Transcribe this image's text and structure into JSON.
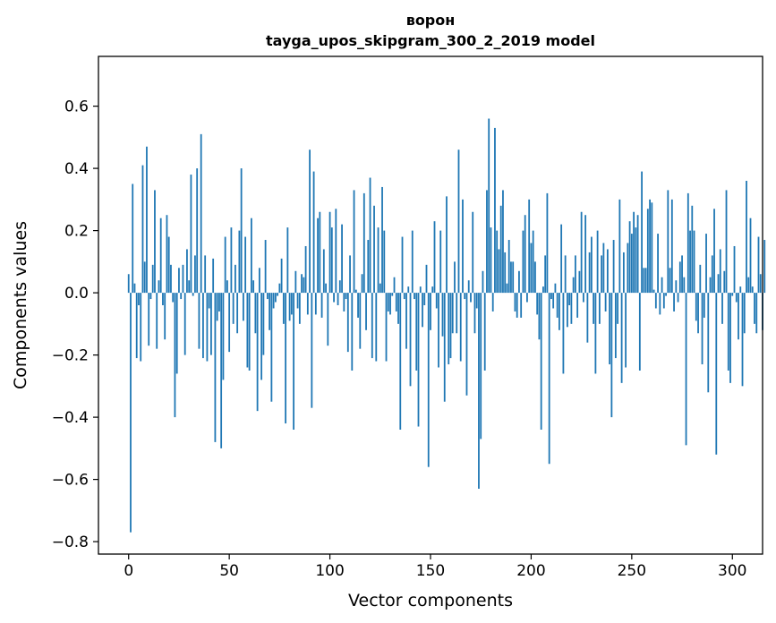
{
  "chart_data": {
    "type": "bar",
    "title": "ворон",
    "subtitle": "tayga_upos_skipgram_300_2_2019 model",
    "xlabel": "Vector components",
    "ylabel": "Components values",
    "xlim": [
      -15,
      315
    ],
    "ylim": [
      -0.84,
      0.76
    ],
    "xticks": [
      0,
      50,
      100,
      150,
      200,
      250,
      300
    ],
    "xtick_labels": [
      "0",
      "50",
      "100",
      "150",
      "200",
      "250",
      "300"
    ],
    "yticks": [
      -0.8,
      -0.6,
      -0.4,
      -0.2,
      0.0,
      0.2,
      0.4,
      0.6
    ],
    "ytick_labels": [
      "−0.8",
      "−0.6",
      "−0.4",
      "−0.2",
      "0.0",
      "0.2",
      "0.4",
      "0.6"
    ],
    "bar_color": "#1f77b4",
    "grid": false,
    "values": [
      0.06,
      -0.77,
      0.35,
      0.03,
      -0.21,
      -0.04,
      -0.22,
      0.41,
      0.1,
      0.47,
      -0.17,
      -0.02,
      0.09,
      0.33,
      -0.18,
      0.04,
      0.24,
      -0.04,
      -0.15,
      0.25,
      0.18,
      0.09,
      -0.03,
      -0.4,
      -0.26,
      0.08,
      -0.02,
      0.09,
      -0.2,
      0.14,
      0.04,
      0.38,
      -0.01,
      0.12,
      0.4,
      -0.18,
      0.51,
      -0.21,
      0.12,
      -0.22,
      -0.05,
      -0.2,
      0.11,
      -0.48,
      -0.09,
      -0.06,
      -0.5,
      -0.28,
      0.18,
      0.04,
      -0.19,
      0.21,
      -0.1,
      0.09,
      -0.13,
      0.2,
      0.4,
      -0.09,
      0.18,
      -0.24,
      -0.25,
      0.24,
      0.04,
      -0.13,
      -0.38,
      0.08,
      -0.28,
      -0.2,
      0.17,
      -0.02,
      -0.12,
      -0.35,
      -0.05,
      -0.03,
      -0.01,
      0.03,
      0.11,
      -0.1,
      -0.42,
      0.21,
      -0.09,
      -0.07,
      -0.44,
      0.07,
      -0.05,
      -0.1,
      0.06,
      0.05,
      0.15,
      -0.07,
      0.46,
      -0.37,
      0.39,
      -0.07,
      0.24,
      0.26,
      -0.08,
      0.14,
      0.03,
      -0.17,
      0.26,
      0.21,
      -0.03,
      0.27,
      -0.04,
      0.04,
      0.22,
      -0.06,
      -0.02,
      -0.19,
      0.12,
      -0.25,
      0.33,
      0.01,
      -0.08,
      -0.18,
      0.06,
      0.32,
      -0.12,
      0.17,
      0.37,
      -0.21,
      0.28,
      -0.22,
      0.21,
      0.03,
      0.34,
      0.2,
      -0.22,
      -0.06,
      -0.07,
      -0.01,
      0.05,
      -0.06,
      -0.1,
      -0.44,
      0.18,
      -0.02,
      -0.18,
      0.02,
      -0.3,
      0.2,
      -0.02,
      -0.25,
      -0.43,
      0.02,
      -0.11,
      -0.04,
      0.09,
      -0.56,
      -0.12,
      0.02,
      0.23,
      -0.05,
      -0.24,
      0.2,
      -0.14,
      -0.35,
      0.31,
      -0.23,
      -0.21,
      -0.13,
      0.1,
      -0.13,
      0.46,
      -0.22,
      0.3,
      -0.02,
      -0.33,
      0.04,
      -0.03,
      0.26,
      -0.13,
      -0.05,
      -0.63,
      -0.47,
      0.07,
      -0.25,
      0.33,
      0.56,
      0.21,
      -0.06,
      0.53,
      0.2,
      0.14,
      0.28,
      0.33,
      0.13,
      0.03,
      0.17,
      0.1,
      0.1,
      -0.06,
      -0.08,
      0.07,
      -0.08,
      0.2,
      0.25,
      -0.03,
      0.3,
      0.16,
      0.2,
      0.1,
      -0.07,
      -0.15,
      -0.44,
      0.02,
      0.12,
      0.32,
      -0.55,
      -0.02,
      -0.05,
      0.03,
      -0.08,
      -0.12,
      0.22,
      -0.26,
      0.12,
      -0.11,
      -0.04,
      -0.1,
      0.05,
      0.12,
      -0.08,
      0.07,
      0.26,
      -0.03,
      0.25,
      -0.16,
      0.13,
      0.18,
      -0.1,
      -0.26,
      0.2,
      -0.1,
      0.12,
      0.16,
      -0.06,
      0.14,
      -0.23,
      -0.4,
      0.17,
      -0.21,
      -0.1,
      0.3,
      -0.29,
      0.13,
      -0.24,
      0.16,
      0.23,
      0.19,
      0.26,
      0.21,
      0.25,
      -0.25,
      0.39,
      0.08,
      0.08,
      0.27,
      0.3,
      0.29,
      0.01,
      -0.05,
      0.19,
      -0.07,
      0.05,
      -0.05,
      -0.01,
      0.33,
      0.08,
      0.3,
      -0.06,
      0.04,
      -0.03,
      0.1,
      0.12,
      0.05,
      -0.49,
      0.32,
      0.2,
      0.28,
      0.2,
      -0.09,
      -0.13,
      0.09,
      -0.23,
      -0.08,
      0.19,
      -0.32,
      0.05,
      0.12,
      0.27,
      -0.52,
      0.06,
      0.14,
      -0.1,
      0.07,
      0.33,
      -0.25,
      -0.29,
      -0.01,
      0.15,
      -0.03,
      -0.15,
      0.02,
      -0.3,
      -0.13,
      0.36,
      0.05,
      0.24,
      0.02,
      -0.1,
      -0.13,
      0.18,
      0.06,
      -0.12,
      0.17
    ]
  }
}
